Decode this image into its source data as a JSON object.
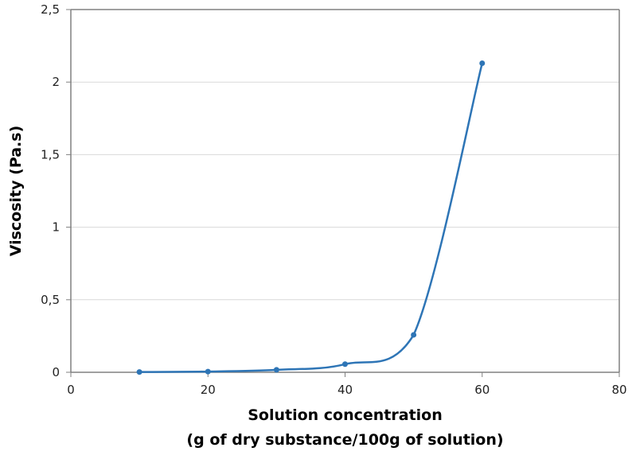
{
  "chart_data": {
    "type": "line",
    "title": "",
    "xlabel_line1": "Solution concentration",
    "xlabel_line2": "(g of dry substance/100g of solution)",
    "xlabel": "Solution concentration (g of dry substance/100g of solution)",
    "ylabel": "Viscosity (Pa.s)",
    "xlim": [
      0,
      80
    ],
    "ylim": [
      0,
      2.5
    ],
    "x_ticks": [
      "0",
      "20",
      "40",
      "60",
      "80"
    ],
    "y_ticks": [
      "0",
      "0,5",
      "1",
      "1,5",
      "2",
      "2,5"
    ],
    "grid": "horizontal",
    "legend": "none",
    "smoothed": true,
    "series": [
      {
        "name": "Viscosity",
        "color": "#2E75B6",
        "x": [
          10,
          20,
          30,
          40,
          50,
          60
        ],
        "y": [
          0.002,
          0.005,
          0.017,
          0.056,
          0.258,
          2.13
        ]
      }
    ]
  }
}
